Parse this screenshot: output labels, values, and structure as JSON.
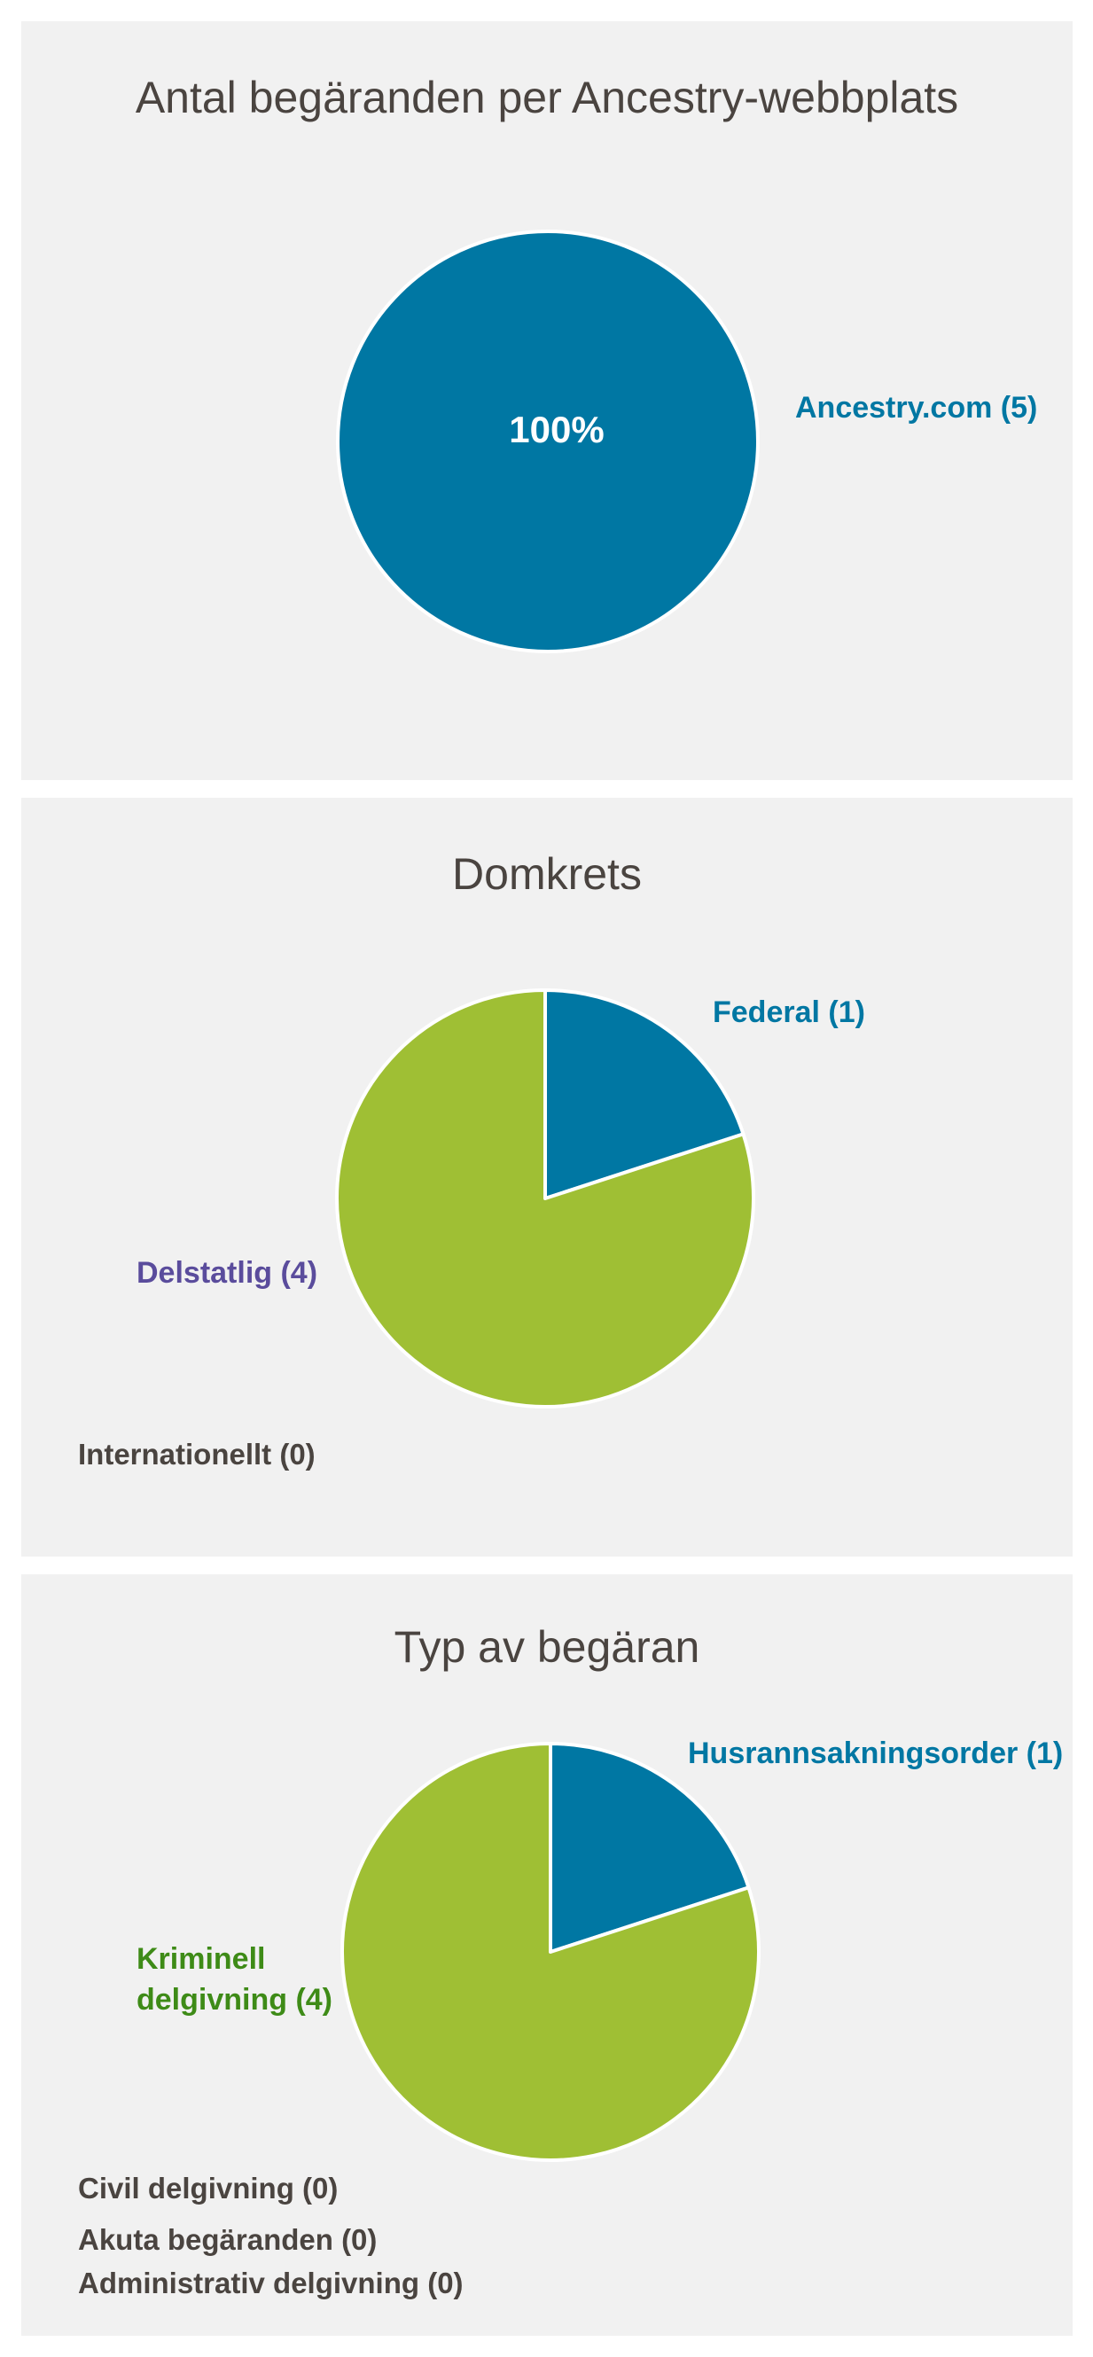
{
  "colors": {
    "blue": "#0077a3",
    "green": "#9fbf34",
    "purple": "#5a4c9c",
    "dark_green": "#3e8b17",
    "gray_text": "#4a4440",
    "panel_bg": "#f1f1f1"
  },
  "chart_data": [
    {
      "type": "pie",
      "title": "Antal begäranden per Ancestry-webbplats",
      "slices": [
        {
          "label": "Ancestry.com (5)",
          "name": "Ancestry.com",
          "value": 5,
          "color": "#0077a3",
          "percent_label": "100%"
        }
      ]
    },
    {
      "type": "pie",
      "title": "Domkrets",
      "slices": [
        {
          "label": "Federal (1)",
          "name": "Federal",
          "value": 1,
          "color": "#0077a3"
        },
        {
          "label": "Delstatlig (4)",
          "name": "Delstatlig",
          "value": 4,
          "color": "#9fbf34"
        }
      ],
      "zero_items": [
        "Internationellt (0)"
      ]
    },
    {
      "type": "pie",
      "title": "Typ av begäran",
      "slices": [
        {
          "label": "Husrannsakningsorder (1)",
          "name": "Husrannsakningsorder",
          "value": 1,
          "color": "#0077a3"
        },
        {
          "label": "Kriminell delgivning (4)",
          "label_lines": [
            "Kriminell",
            "delgivning (4)"
          ],
          "name": "Kriminell delgivning",
          "value": 4,
          "color": "#9fbf34"
        }
      ],
      "zero_items": [
        "Civil delgivning (0)",
        "Akuta begäranden (0)",
        "Administrativ delgivning (0)"
      ]
    }
  ]
}
